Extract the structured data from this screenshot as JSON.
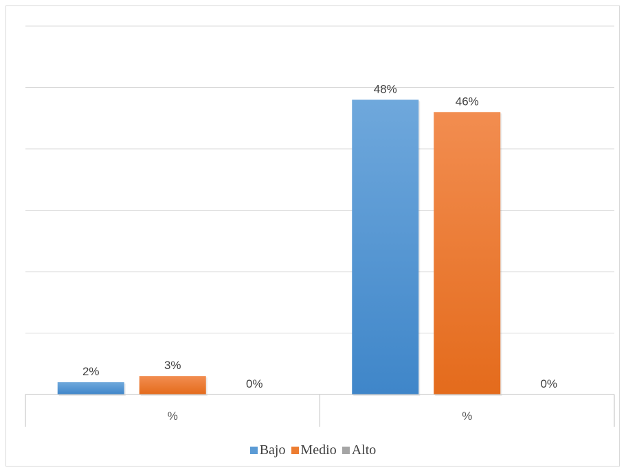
{
  "chart_data": {
    "type": "bar",
    "categories": [
      "%",
      "%"
    ],
    "series": [
      {
        "name": "Bajo",
        "values": [
          2,
          48
        ],
        "labels": [
          "2%",
          "48%"
        ],
        "color": "#5b9bd5"
      },
      {
        "name": "Medio",
        "values": [
          3,
          46
        ],
        "labels": [
          "3%",
          "46%"
        ],
        "color": "#ed7d31"
      },
      {
        "name": "Alto",
        "values": [
          0,
          0
        ],
        "labels": [
          "0%",
          "0%"
        ],
        "color": "#a5a5a5"
      }
    ],
    "ylim": [
      0,
      60
    ],
    "grid": true,
    "legend_position": "bottom"
  }
}
